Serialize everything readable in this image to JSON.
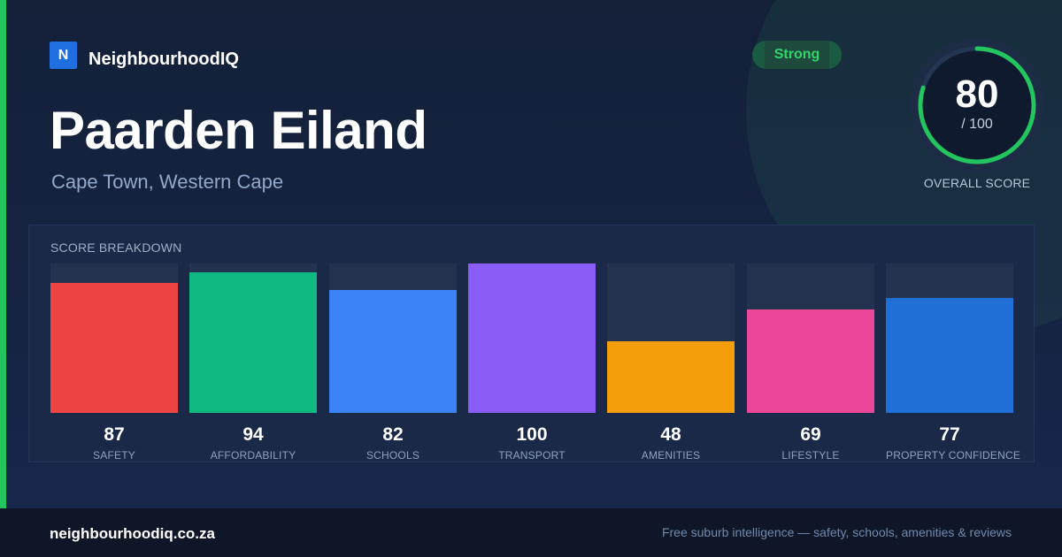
{
  "brand": {
    "logo_letter": "N",
    "name": "NeighbourhoodIQ"
  },
  "badge": {
    "label": "Strong",
    "color": "#34d46b"
  },
  "header": {
    "title": "Paarden Eiland",
    "subtitle": "Cape Town, Western Cape"
  },
  "overall": {
    "value": 80,
    "max_label": "/ 100",
    "caption": "OVERALL SCORE",
    "ring_color": "#22c55e"
  },
  "breakdown": {
    "title": "SCORE BREAKDOWN",
    "max": 100,
    "items": [
      {
        "label": "SAFETY",
        "value": 87,
        "color": "#ef4444"
      },
      {
        "label": "AFFORDABILITY",
        "value": 94,
        "color": "#10b981"
      },
      {
        "label": "SCHOOLS",
        "value": 82,
        "color": "#3b82f6"
      },
      {
        "label": "TRANSPORT",
        "value": 100,
        "color": "#8b5cf6"
      },
      {
        "label": "AMENITIES",
        "value": 48,
        "color": "#f59e0b"
      },
      {
        "label": "LIFESTYLE",
        "value": 69,
        "color": "#ec4899"
      },
      {
        "label": "PROPERTY CONFIDENCE",
        "value": 77,
        "color": "#1f6fd6"
      }
    ]
  },
  "footer": {
    "url": "neighbourhoodiq.co.za",
    "tagline": "Free suburb intelligence — safety, schools, amenities & reviews"
  },
  "colors": {
    "accent": "#22c55e",
    "background": "#15233d"
  }
}
